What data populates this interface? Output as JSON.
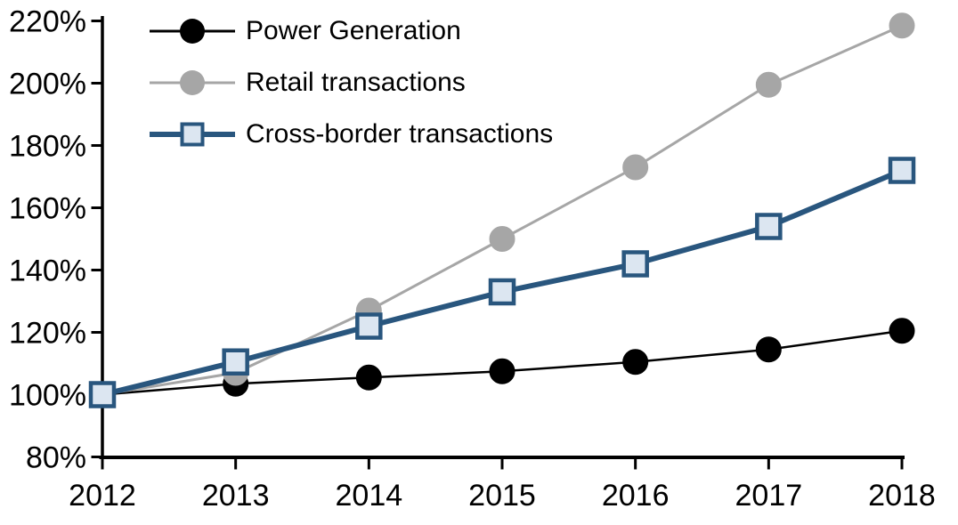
{
  "chart_data": {
    "type": "line",
    "title": "",
    "xlabel": "",
    "ylabel": "",
    "x_labels": [
      "2012",
      "2013",
      "2014",
      "2015",
      "2016",
      "2017",
      "2018"
    ],
    "series": [
      {
        "name": "Power Generation",
        "line_color": "#000000",
        "marker": "circle",
        "marker_fill": "#000000",
        "marker_stroke": "#000000",
        "values": [
          100,
          103.5,
          105.5,
          107.5,
          110.5,
          114.5,
          120.5
        ]
      },
      {
        "name": "Retail transactions",
        "line_color": "#a6a6a6",
        "marker": "circle",
        "marker_fill": "#a6a6a6",
        "marker_stroke": "#a6a6a6",
        "values": [
          100,
          107,
          127,
          150,
          173,
          199.5,
          218.5
        ]
      },
      {
        "name": "Cross-border transactions",
        "line_color": "#29567e",
        "marker": "square",
        "marker_fill": "#dce6f1",
        "marker_stroke": "#29567e",
        "values": [
          100,
          110.5,
          122,
          133,
          142,
          154,
          172
        ]
      }
    ],
    "y_axis": {
      "min": 80,
      "max": 220,
      "step": 20,
      "suffix": "%",
      "tick_labels": [
        "80%",
        "100%",
        "120%",
        "140%",
        "160%",
        "180%",
        "200%",
        "220%"
      ]
    },
    "legend_position": "top-left",
    "grid": false,
    "background": "#ffffff",
    "axis_color": "#000000"
  }
}
